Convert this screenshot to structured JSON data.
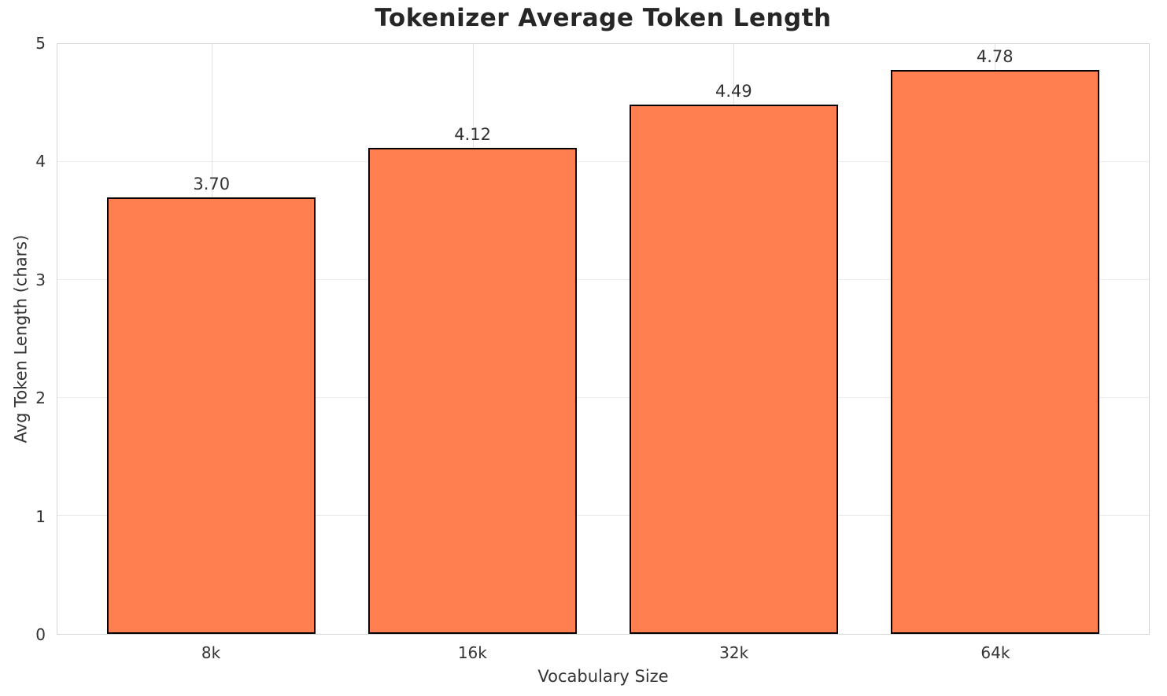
{
  "chart_data": {
    "type": "bar",
    "title": "Tokenizer Average Token Length",
    "xlabel": "Vocabulary Size",
    "ylabel": "Avg Token Length (chars)",
    "categories": [
      "8k",
      "16k",
      "32k",
      "64k"
    ],
    "values": [
      3.7,
      4.12,
      4.49,
      4.78
    ],
    "value_labels": [
      "3.70",
      "4.12",
      "4.49",
      "4.78"
    ],
    "ylim": [
      0,
      5
    ],
    "yticks": [
      0,
      1,
      2,
      3,
      4,
      5
    ],
    "grid": true,
    "legend_position": "none",
    "bar_color": "#FF7F50",
    "bar_edge_color": "#000000",
    "colors": {
      "grid": "#ececec",
      "vgrid": "#e2e2e2",
      "spine": "#d4d4d4",
      "text": "#333333",
      "title": "#262626",
      "background": "#ffffff"
    }
  }
}
